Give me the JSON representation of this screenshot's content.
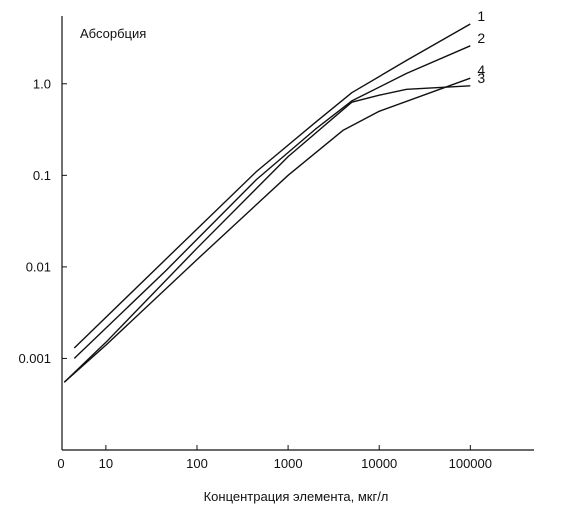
{
  "chart_data": {
    "type": "line",
    "title": "",
    "ylabel": "Абсорбция",
    "xlabel": "Концентрация элемента, мкг/л",
    "x_scale": "log",
    "y_scale": "log",
    "xlim": [
      3.3,
      500000
    ],
    "ylim": [
      0.0001,
      5.5
    ],
    "origin_label": "0",
    "x_ticks": [
      {
        "value": 10,
        "label": "10"
      },
      {
        "value": 100,
        "label": "100"
      },
      {
        "value": 1000,
        "label": "1000"
      },
      {
        "value": 10000,
        "label": "10000"
      },
      {
        "value": 100000,
        "label": "100000"
      }
    ],
    "y_ticks": [
      {
        "value": 0.001,
        "label": "0.001"
      },
      {
        "value": 0.01,
        "label": "0.01"
      },
      {
        "value": 0.1,
        "label": "0.1"
      },
      {
        "value": 1.0,
        "label": "1.0"
      }
    ],
    "grid": false,
    "legend": "none",
    "line_color": "#111111",
    "series": [
      {
        "name": "1",
        "x": [
          4.5,
          45,
          450,
          2000,
          5000,
          20000,
          100000
        ],
        "y": [
          0.0013,
          0.012,
          0.11,
          0.38,
          0.8,
          1.8,
          4.5
        ]
      },
      {
        "name": "2",
        "x": [
          4.5,
          45,
          450,
          2000,
          5000,
          20000,
          100000
        ],
        "y": [
          0.001,
          0.009,
          0.09,
          0.32,
          0.65,
          1.3,
          2.6
        ]
      },
      {
        "name": "3",
        "x": [
          3.5,
          10,
          100,
          1000,
          5000,
          10000,
          20000,
          100000
        ],
        "y": [
          0.00055,
          0.0015,
          0.016,
          0.16,
          0.63,
          0.75,
          0.87,
          0.95
        ]
      },
      {
        "name": "4",
        "x": [
          3.5,
          10,
          100,
          1000,
          4000,
          10000,
          100000
        ],
        "y": [
          0.00055,
          0.0014,
          0.012,
          0.1,
          0.31,
          0.5,
          1.15
        ]
      }
    ]
  }
}
